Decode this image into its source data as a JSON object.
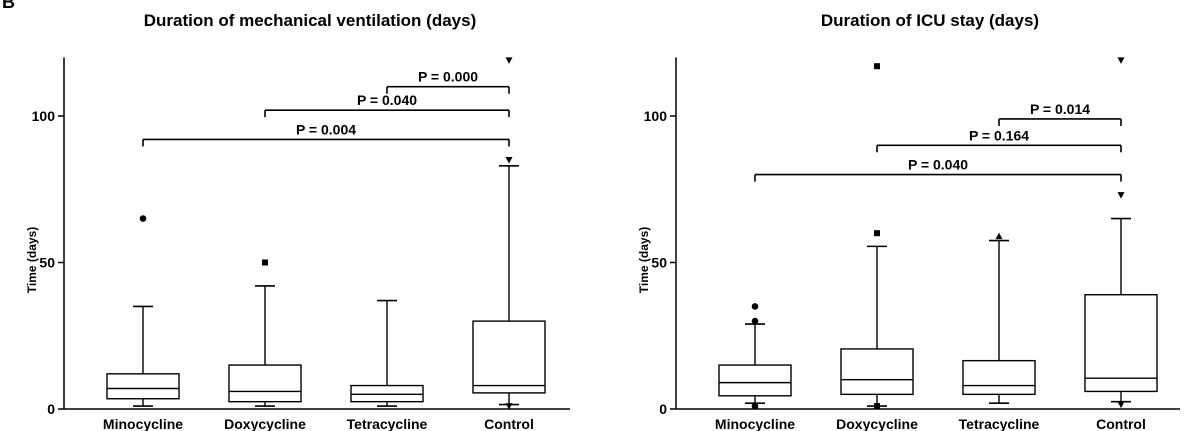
{
  "panel_letter": "B",
  "chart_data": [
    {
      "type": "box",
      "title": "Duration of mechanical ventilation (days)",
      "ylabel": "Time (days)",
      "ylim": [
        0,
        120
      ],
      "yticks": [
        0,
        50,
        100
      ],
      "categories": [
        "Minocycline",
        "Doxycycline",
        "Tetracycline",
        "Control"
      ],
      "boxes": [
        {
          "whisker_low": 1,
          "q1": 3.5,
          "median": 7,
          "q3": 12,
          "whisker_high": 35
        },
        {
          "whisker_low": 1,
          "q1": 2.5,
          "median": 6,
          "q3": 15,
          "whisker_high": 42
        },
        {
          "whisker_low": 1,
          "q1": 2.5,
          "median": 5,
          "q3": 8,
          "whisker_high": 37
        },
        {
          "whisker_low": 1.5,
          "q1": 5.5,
          "median": 8,
          "q3": 30,
          "whisker_high": 83
        }
      ],
      "outliers": [
        {
          "category": "Minocycline",
          "y": 65,
          "marker": "circle"
        },
        {
          "category": "Doxycycline",
          "y": 50,
          "marker": "square"
        },
        {
          "category": "Control",
          "y": 85,
          "marker": "triangle-down"
        },
        {
          "category": "Control",
          "y": 119,
          "marker": "triangle-down"
        },
        {
          "category": "Control",
          "y": 1,
          "marker": "triangle-down"
        }
      ],
      "comparisons": [
        {
          "from": "Tetracycline",
          "to": "Control",
          "label": "P = 0.000",
          "y": 110
        },
        {
          "from": "Doxycycline",
          "to": "Control",
          "label": "P = 0.040",
          "y": 102
        },
        {
          "from": "Minocycline",
          "to": "Control",
          "label": "P = 0.004",
          "y": 92
        }
      ]
    },
    {
      "type": "box",
      "title": "Duration of ICU stay (days)",
      "ylabel": "Time (days)",
      "ylim": [
        0,
        120
      ],
      "yticks": [
        0,
        50,
        100
      ],
      "categories": [
        "Minocycline",
        "Doxycycline",
        "Tetracycline",
        "Control"
      ],
      "boxes": [
        {
          "whisker_low": 2,
          "q1": 4.5,
          "median": 9,
          "q3": 15,
          "whisker_high": 29
        },
        {
          "whisker_low": 1,
          "q1": 5,
          "median": 10,
          "q3": 20.5,
          "whisker_high": 55.5
        },
        {
          "whisker_low": 2,
          "q1": 5,
          "median": 8,
          "q3": 16.5,
          "whisker_high": 57.5
        },
        {
          "whisker_low": 2.5,
          "q1": 6,
          "median": 10.5,
          "q3": 39,
          "whisker_high": 65
        }
      ],
      "outliers": [
        {
          "category": "Minocycline",
          "y": 35,
          "marker": "circle"
        },
        {
          "category": "Minocycline",
          "y": 30,
          "marker": "circle"
        },
        {
          "category": "Minocycline",
          "y": 1,
          "marker": "circle"
        },
        {
          "category": "Doxycycline",
          "y": 117,
          "marker": "square"
        },
        {
          "category": "Doxycycline",
          "y": 60,
          "marker": "square"
        },
        {
          "category": "Doxycycline",
          "y": 1,
          "marker": "square"
        },
        {
          "category": "Tetracycline",
          "y": 59,
          "marker": "triangle-up"
        },
        {
          "category": "Control",
          "y": 119,
          "marker": "triangle-down"
        },
        {
          "category": "Control",
          "y": 73,
          "marker": "triangle-down"
        },
        {
          "category": "Control",
          "y": 1.5,
          "marker": "triangle-down"
        }
      ],
      "comparisons": [
        {
          "from": "Tetracycline",
          "to": "Control",
          "label": "P = 0.014",
          "y": 99
        },
        {
          "from": "Doxycycline",
          "to": "Control",
          "label": "P = 0.164",
          "y": 90
        },
        {
          "from": "Minocycline",
          "to": "Control",
          "label": "P = 0.040",
          "y": 80
        }
      ]
    }
  ]
}
